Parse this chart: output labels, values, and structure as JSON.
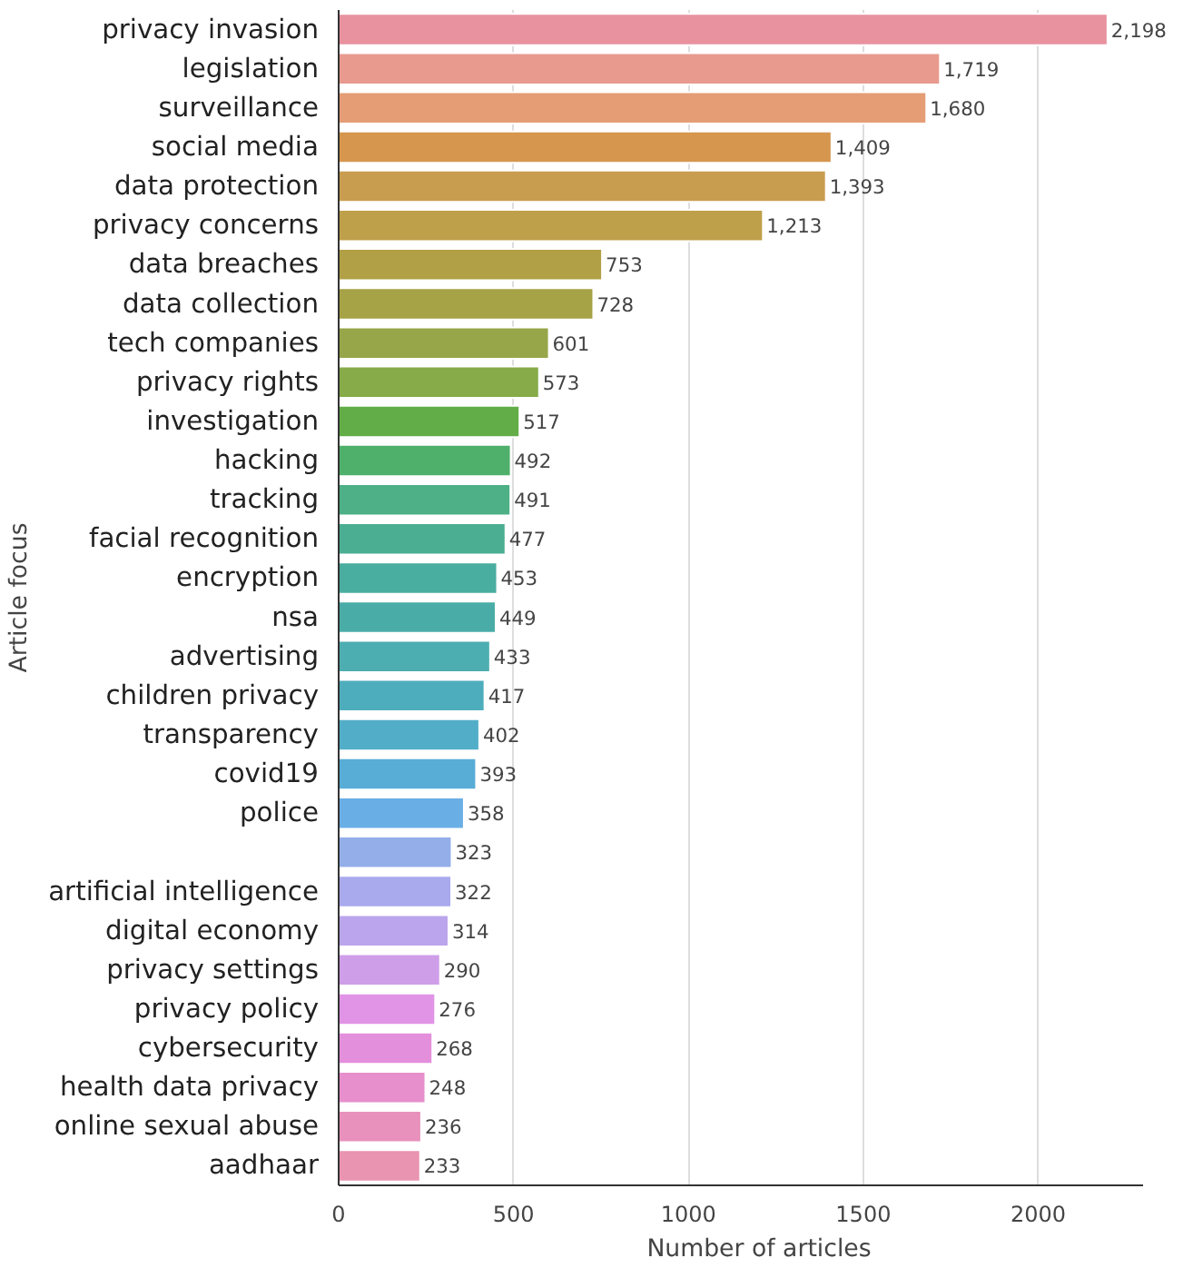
{
  "chart_data": {
    "type": "bar",
    "orientation": "horizontal",
    "xlabel": "Number of articles",
    "ylabel": "Article focus",
    "categories": [
      "privacy invasion",
      "legislation",
      "surveillance",
      "social media",
      "data protection",
      "privacy concerns",
      "data breaches",
      "data collection",
      "tech companies",
      "privacy rights",
      "investigation",
      "hacking",
      "tracking",
      "facial recognition",
      "encryption",
      "nsa",
      "advertising",
      "children privacy",
      "transparency",
      "covid19",
      "police",
      null,
      "artificial intelligence",
      "digital economy",
      "privacy settings",
      "privacy policy",
      "cybersecurity",
      "health data privacy",
      "online sexual abuse",
      "aadhaar"
    ],
    "values": [
      2198,
      1719,
      1680,
      1409,
      1393,
      1213,
      753,
      728,
      601,
      573,
      517,
      492,
      491,
      477,
      453,
      449,
      433,
      417,
      402,
      393,
      358,
      323,
      322,
      314,
      290,
      276,
      268,
      248,
      236,
      233
    ],
    "value_labels": [
      "2,198",
      "1,719",
      "1,680",
      "1,409",
      "1,393",
      "1,213",
      "753",
      "728",
      "601",
      "573",
      "517",
      "492",
      "491",
      "477",
      "453",
      "449",
      "433",
      "417",
      "402",
      "393",
      "358",
      "323",
      "322",
      "314",
      "290",
      "276",
      "268",
      "248",
      "236",
      "233"
    ],
    "colors": [
      "#e8919f",
      "#e89a8e",
      "#e59d75",
      "#d6964e",
      "#c99d50",
      "#bfa04a",
      "#b1a045",
      "#a6a246",
      "#97a648",
      "#86ab48",
      "#62ad48",
      "#4eb06b",
      "#4db086",
      "#4bae93",
      "#49ad9f",
      "#4aaca6",
      "#4caeb0",
      "#4eadbc",
      "#52aec8",
      "#57add6",
      "#6aaee6",
      "#93aee9",
      "#a9a9ee",
      "#bba5ec",
      "#cf9ee8",
      "#e193e6",
      "#e48fdc",
      "#e68fcc",
      "#e891bc",
      "#e994b0"
    ],
    "xlim": [
      0,
      2300
    ],
    "xticks": [
      0,
      500,
      1000,
      1500,
      2000
    ],
    "grid": "x"
  }
}
